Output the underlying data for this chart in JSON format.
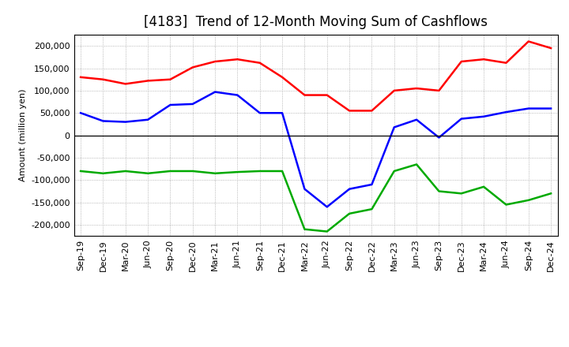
{
  "title": "[4183]  Trend of 12-Month Moving Sum of Cashflows",
  "ylabel": "Amount (million yen)",
  "xlabels": [
    "Sep-19",
    "Dec-19",
    "Mar-20",
    "Jun-20",
    "Sep-20",
    "Dec-20",
    "Mar-21",
    "Jun-21",
    "Sep-21",
    "Dec-21",
    "Mar-22",
    "Jun-22",
    "Sep-22",
    "Dec-22",
    "Mar-23",
    "Jun-23",
    "Sep-23",
    "Dec-23",
    "Mar-24",
    "Jun-24",
    "Sep-24",
    "Dec-24"
  ],
  "operating": [
    130000,
    125000,
    115000,
    122000,
    125000,
    152000,
    165000,
    170000,
    162000,
    130000,
    90000,
    90000,
    55000,
    55000,
    100000,
    105000,
    100000,
    165000,
    170000,
    162000,
    210000,
    195000
  ],
  "investing": [
    -80000,
    -85000,
    -80000,
    -85000,
    -80000,
    -80000,
    -85000,
    -82000,
    -80000,
    -80000,
    -210000,
    -215000,
    -175000,
    -165000,
    -80000,
    -65000,
    -125000,
    -130000,
    -115000,
    -155000,
    -145000,
    -130000
  ],
  "free": [
    50000,
    32000,
    30000,
    35000,
    68000,
    70000,
    97000,
    90000,
    50000,
    50000,
    -120000,
    -160000,
    -120000,
    -110000,
    18000,
    35000,
    -5000,
    37000,
    42000,
    52000,
    60000,
    60000
  ],
  "operating_color": "#ff0000",
  "investing_color": "#00aa00",
  "free_color": "#0000ff",
  "ylim": [
    -225000,
    225000
  ],
  "yticks": [
    -200000,
    -150000,
    -100000,
    -50000,
    0,
    50000,
    100000,
    150000,
    200000
  ],
  "background_color": "#ffffff",
  "grid_color": "#999999",
  "title_fontsize": 12,
  "axis_fontsize": 8,
  "legend_fontsize": 9
}
